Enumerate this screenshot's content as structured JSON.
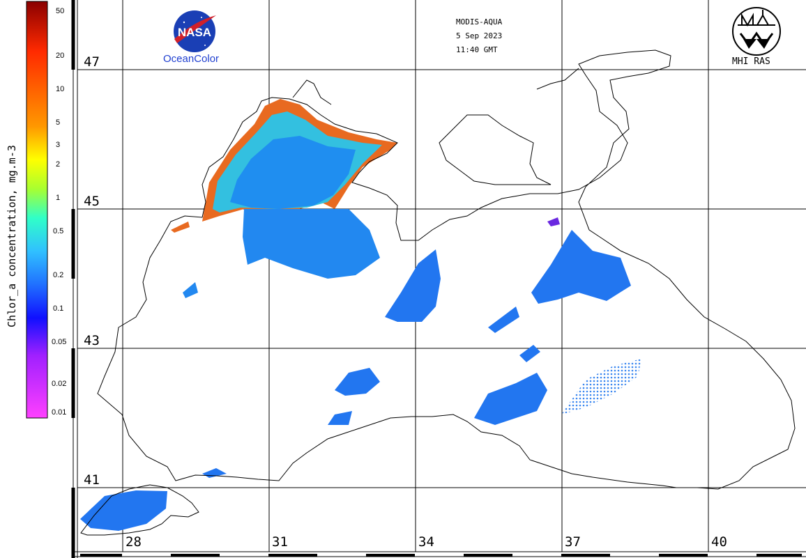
{
  "header": {
    "sensor": "MODIS-AQUA",
    "date": "5 Sep 2023",
    "time": "11:40 GMT"
  },
  "logos": {
    "nasa_text": "NASA",
    "oceancolor_text": "OceanColor",
    "mhi_text": "MHI RAS"
  },
  "colorbar": {
    "title": "Chlor_a concentration, mg.m-3",
    "ticks": [
      "50",
      "20",
      "10",
      "5",
      "3",
      "2",
      "1",
      "0.5",
      "0.2",
      "0.1",
      "0.05",
      "0.02",
      "0.01"
    ]
  },
  "grid": {
    "latitudes": [
      "47",
      "45",
      "43",
      "41"
    ],
    "longitudes": [
      "28",
      "31",
      "34",
      "37",
      "40"
    ]
  },
  "colors": {
    "land_outline": "#000000",
    "grid_line": "#000000",
    "chl_low": "#1e6cf0",
    "chl_mid": "#3fb8e8",
    "chl_high": "#e8501e",
    "nasa_blue": "#1a3fb5",
    "nasa_red": "#d0202a"
  }
}
